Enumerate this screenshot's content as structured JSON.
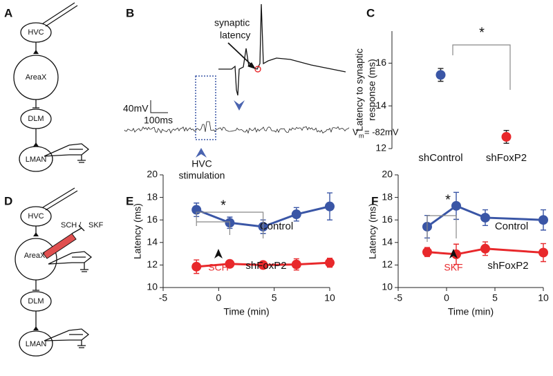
{
  "panel_labels": [
    "A",
    "B",
    "C",
    "D",
    "E",
    "F"
  ],
  "diagram_a": {
    "nodes": [
      "HVC",
      "AreaX",
      "DLM",
      "LMAN"
    ]
  },
  "diagram_d": {
    "nodes": [
      "HVC",
      "AreaX",
      "DLM",
      "LMAN"
    ],
    "drugs": [
      "SCH /",
      "SKF"
    ]
  },
  "trace": {
    "annotation": [
      "synaptic",
      "latency"
    ],
    "scale_v": "40mV",
    "scale_t": "100ms",
    "vm_symbol": "V",
    "vm_subscript": "m",
    "vm_value": "= -82mV",
    "stimulation": [
      "HVC",
      "stimulation"
    ]
  },
  "chart_data": [
    {
      "type": "point",
      "ylabel": [
        "Latency to synaptic",
        "response (ms)"
      ],
      "categories": [
        "shControl",
        "shFoxP2"
      ],
      "values": [
        15.45,
        12.55
      ],
      "errors": [
        0.3,
        0.3
      ],
      "colors": [
        "#3a56a6",
        "#e8282b"
      ],
      "ylim": [
        12,
        17.5
      ],
      "yticks": [
        12,
        14,
        16
      ],
      "annotations": [
        "*"
      ]
    },
    {
      "type": "line",
      "xlabel": "Time (min)",
      "ylabel": "Latency (ms)",
      "x": [
        -2,
        1,
        4,
        7,
        10
      ],
      "series": [
        {
          "name": "Control",
          "color": "#3a56a6",
          "values": [
            16.9,
            15.75,
            15.4,
            16.5,
            17.2
          ],
          "errors": [
            0.6,
            0.5,
            0.6,
            0.6,
            1.2
          ]
        },
        {
          "name": "shFoxP2",
          "color": "#e8282b",
          "values": [
            11.85,
            12.1,
            12.0,
            12.05,
            12.2
          ],
          "errors": [
            0.6,
            0.3,
            0.3,
            0.5,
            0.4
          ]
        }
      ],
      "xlim": [
        -5,
        10
      ],
      "xticks": [
        -5,
        0,
        5,
        10
      ],
      "ylim": [
        10,
        20
      ],
      "yticks": [
        10,
        12,
        14,
        16,
        18,
        20
      ],
      "annotations": [
        "*",
        "SCH"
      ]
    },
    {
      "type": "line",
      "xlabel": "Time (min)",
      "ylabel": "Latency (ms)",
      "x": [
        -2,
        1,
        4,
        10
      ],
      "series": [
        {
          "name": "Control",
          "color": "#3a56a6",
          "values": [
            15.4,
            17.25,
            16.2,
            16.0
          ],
          "errors": [
            1.0,
            1.2,
            0.7,
            0.9
          ]
        },
        {
          "name": "shFoxP2",
          "color": "#e8282b",
          "values": [
            13.15,
            12.95,
            13.45,
            13.1
          ],
          "errors": [
            0.4,
            0.9,
            0.6,
            0.8
          ]
        }
      ],
      "xlim": [
        -5,
        10
      ],
      "xticks": [
        -5,
        0,
        5,
        10
      ],
      "ylim": [
        10,
        20
      ],
      "yticks": [
        10,
        12,
        14,
        16,
        18,
        20
      ],
      "annotations": [
        "*",
        "SKF"
      ]
    }
  ]
}
